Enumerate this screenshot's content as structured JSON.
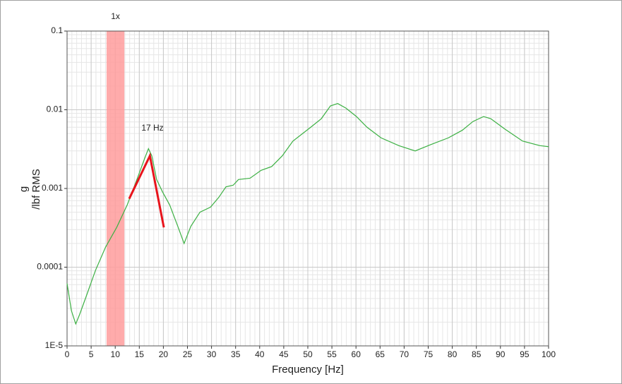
{
  "chart_data": {
    "type": "line",
    "xlabel": "Frequency [Hz]",
    "ylabel": [
      "g",
      "/lbf RMS"
    ],
    "xlim": [
      0,
      100
    ],
    "xticks": [
      0,
      5,
      10,
      15,
      20,
      25,
      30,
      35,
      40,
      45,
      50,
      55,
      60,
      65,
      70,
      75,
      80,
      85,
      90,
      95,
      100
    ],
    "ylim": [
      1e-05,
      0.1
    ],
    "yticks": [
      {
        "value": 1e-05,
        "label": "1E-5"
      },
      0.0001,
      0.001,
      0.01,
      0.1
    ],
    "log_y": true,
    "grid": true,
    "minor_grid": true,
    "series": [
      {
        "color": "#3cb043",
        "x": [
          0,
          0.9,
          1.8,
          2.6,
          4,
          5.9,
          8,
          10.3,
          12.5,
          14.7,
          16.1,
          16.9,
          17.6,
          18.6,
          19.8,
          21.3,
          23,
          24.3,
          25.7,
          27.6,
          29.8,
          31.5,
          33,
          34.5,
          35.6,
          38,
          40.3,
          42.5,
          44.7,
          46.9,
          50.6,
          52.8,
          54.7,
          56.2,
          57.9,
          60.1,
          62.3,
          65.2,
          68.9,
          72.3,
          75.5,
          79.2,
          82.1,
          84.3,
          86.5,
          88,
          90.9,
          94.6,
          98.2,
          100
        ],
        "values": [
          6.2e-05,
          2.8e-05,
          1.9e-05,
          2.5e-05,
          4.3e-05,
          9.1e-05,
          0.00018,
          0.00032,
          0.00062,
          0.0014,
          0.0024,
          0.0032,
          0.0026,
          0.0013,
          0.00091,
          0.00062,
          0.00033,
          0.0002,
          0.00033,
          0.0005,
          0.00058,
          0.00077,
          0.00105,
          0.0011,
          0.0013,
          0.00135,
          0.0017,
          0.0019,
          0.0026,
          0.004,
          0.006,
          0.0077,
          0.0112,
          0.012,
          0.0105,
          0.0082,
          0.006,
          0.0044,
          0.0035,
          0.003,
          0.0036,
          0.0044,
          0.0055,
          0.0071,
          0.0082,
          0.0077,
          0.0057,
          0.004,
          0.0035,
          0.0034
        ]
      },
      {
        "color": "#e8141c",
        "x": [
          12.9,
          17.2,
          20.1
        ],
        "values": [
          0.00074,
          0.0026,
          0.00032
        ]
      }
    ],
    "bands": [
      {
        "x": [
          8.2,
          11.9
        ],
        "label": "1x",
        "color": "#ff9c9c"
      }
    ],
    "annotations": [
      "17 Hz"
    ]
  }
}
